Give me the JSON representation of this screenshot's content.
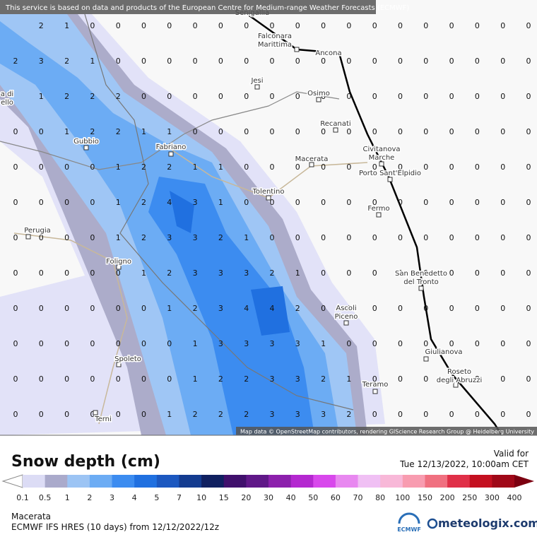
{
  "banner": "This service is based on data and products of the European Centre for Medium-range Weather Forecasts (ECMWF)",
  "attribution": "Map data © OpenStreetMap contributors, rendering GIScience Research Group @ Heidelberg University",
  "cities": [
    {
      "lines": [
        "Senigallia"
      ]
    },
    {
      "lines": [
        "Falconara",
        "Marittima"
      ]
    },
    {
      "lines": [
        "Ancona"
      ]
    },
    {
      "lines": [
        "Jesi"
      ]
    },
    {
      "lines": [
        "Osimo"
      ]
    },
    {
      "lines": [
        "Recanati"
      ]
    },
    {
      "lines": [
        "Civitanova",
        "Marche"
      ]
    },
    {
      "lines": [
        "Macerata"
      ]
    },
    {
      "lines": [
        "Porto Sant'Elpidio"
      ]
    },
    {
      "lines": [
        "Fabriano"
      ]
    },
    {
      "lines": [
        "Gubbio"
      ]
    },
    {
      "lines": [
        "Tolentino"
      ]
    },
    {
      "lines": [
        "Fermo"
      ]
    },
    {
      "lines": [
        "Perugia"
      ]
    },
    {
      "lines": [
        "San Benedetto",
        "del Tronto"
      ]
    },
    {
      "lines": [
        "Foligno"
      ]
    },
    {
      "lines": [
        "Ascoli",
        "Piceno"
      ]
    },
    {
      "lines": [
        "Spoleto"
      ]
    },
    {
      "lines": [
        "Giulianova"
      ]
    },
    {
      "lines": [
        "Roseto",
        "degli Abruzzi"
      ]
    },
    {
      "lines": [
        "Teramo"
      ]
    },
    {
      "lines": [
        "Terni"
      ]
    },
    {
      "lines": [
        "a di",
        "ello"
      ]
    }
  ],
  "snow_grid": [
    [
      null,
      2,
      1,
      0,
      0,
      0,
      0,
      0,
      0,
      0,
      0,
      0,
      0,
      0,
      0,
      0,
      0,
      0,
      0,
      0,
      0
    ],
    [
      2,
      3,
      2,
      1,
      0,
      0,
      0,
      0,
      0,
      0,
      0,
      0,
      0,
      0,
      0,
      0,
      0,
      0,
      0,
      0,
      0
    ],
    [
      null,
      1,
      2,
      2,
      2,
      0,
      0,
      0,
      0,
      0,
      0,
      0,
      0,
      0,
      0,
      0,
      0,
      0,
      0,
      0,
      0
    ],
    [
      0,
      0,
      1,
      2,
      2,
      1,
      1,
      0,
      0,
      0,
      0,
      0,
      0,
      0,
      0,
      0,
      0,
      0,
      0,
      0,
      0
    ],
    [
      0,
      0,
      0,
      0,
      1,
      2,
      2,
      1,
      1,
      0,
      0,
      0,
      0,
      0,
      0,
      0,
      0,
      0,
      0,
      0,
      0
    ],
    [
      0,
      0,
      0,
      0,
      1,
      2,
      4,
      3,
      1,
      0,
      0,
      0,
      0,
      0,
      0,
      0,
      0,
      0,
      0,
      0,
      0
    ],
    [
      0,
      0,
      0,
      0,
      1,
      2,
      3,
      3,
      2,
      1,
      0,
      0,
      0,
      0,
      0,
      0,
      0,
      0,
      0,
      0,
      0
    ],
    [
      0,
      0,
      0,
      0,
      0,
      1,
      2,
      3,
      3,
      3,
      2,
      1,
      0,
      0,
      0,
      0,
      0,
      0,
      0,
      0,
      0
    ],
    [
      0,
      0,
      0,
      0,
      0,
      0,
      1,
      2,
      3,
      4,
      4,
      2,
      0,
      0,
      0,
      0,
      0,
      0,
      0,
      0,
      0
    ],
    [
      0,
      0,
      0,
      0,
      0,
      0,
      0,
      1,
      3,
      3,
      3,
      3,
      1,
      0,
      0,
      0,
      0,
      0,
      0,
      0,
      0
    ],
    [
      0,
      0,
      0,
      0,
      0,
      0,
      0,
      1,
      2,
      2,
      3,
      3,
      2,
      1,
      0,
      0,
      0,
      0,
      0,
      0,
      0
    ],
    [
      0,
      0,
      0,
      0,
      0,
      0,
      1,
      2,
      2,
      2,
      3,
      3,
      3,
      2,
      0,
      0,
      0,
      0,
      0,
      0,
      0
    ]
  ],
  "legend": {
    "title": "Snow depth (cm)",
    "valid_label": "Valid for",
    "valid_time": "Tue 12/13/2022, 10:00am CET",
    "ticks": [
      0.1,
      0.5,
      1,
      2,
      3,
      4,
      5,
      7,
      10,
      15,
      20,
      30,
      40,
      50,
      60,
      70,
      80,
      100,
      150,
      200,
      250,
      300,
      400
    ],
    "colors": [
      "#dcdcf5",
      "#aaaacb",
      "#9cc4f4",
      "#6cacf4",
      "#3c8cf0",
      "#2070e0",
      "#1c58c0",
      "#143c90",
      "#102060",
      "#40106c",
      "#601888",
      "#8c20ac",
      "#b428d0",
      "#d848ec",
      "#e888f0",
      "#f0c0f4",
      "#f8b8d8",
      "#f89cb0",
      "#f07080",
      "#e03048",
      "#c41020",
      "#a00818"
    ],
    "under_color": "#ffffff",
    "over_color": "#7c0010"
  },
  "footer": {
    "location": "Macerata",
    "model": "ECMWF IFS HRES (10 days) from 12/12/2022/12z",
    "ecmwf_logo": "ECMWF",
    "brand": "meteologix.com"
  }
}
